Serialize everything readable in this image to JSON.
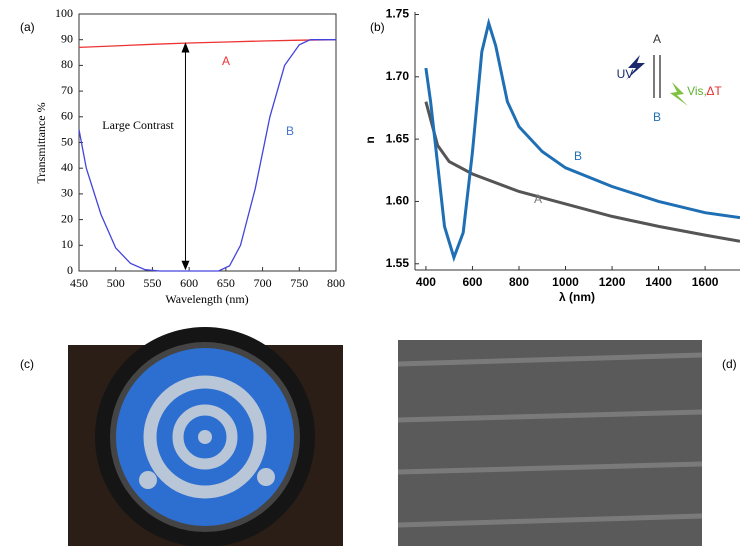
{
  "chart_data": [
    {
      "type": "line",
      "label": "(a)",
      "x_label": "Wavelength (nm)",
      "y_label": "Transmittance %",
      "xlim": [
        450,
        800
      ],
      "xticks": [
        450,
        500,
        550,
        600,
        650,
        700,
        750,
        800
      ],
      "ylim": [
        0,
        100
      ],
      "yticks": [
        0,
        10,
        20,
        30,
        40,
        50,
        60,
        70,
        80,
        90,
        100
      ],
      "series": [
        {
          "name": "A",
          "color": "#ee3333",
          "x": [
            450,
            500,
            550,
            600,
            650,
            700,
            750,
            800
          ],
          "values": [
            87,
            87.6,
            88.2,
            88.7,
            89.1,
            89.5,
            89.8,
            90
          ]
        },
        {
          "name": "B",
          "color": "#4444dd",
          "x": [
            450,
            460,
            480,
            500,
            520,
            540,
            560,
            600,
            640,
            655,
            670,
            690,
            710,
            730,
            750,
            765,
            780,
            800
          ],
          "values": [
            55,
            40,
            22,
            9,
            3,
            0.5,
            0,
            0,
            0,
            2,
            10,
            32,
            60,
            80,
            88,
            90,
            90,
            90
          ]
        }
      ],
      "annotations": [
        "A",
        "B",
        "Large Contrast"
      ]
    },
    {
      "type": "line",
      "label": "(b)",
      "x_label": "λ (nm)",
      "y_label": "n",
      "xlim": [
        353,
        1750
      ],
      "xticks": [
        400,
        600,
        800,
        1000,
        1200,
        1400,
        1600
      ],
      "ylim": [
        1.545,
        1.752
      ],
      "yticks": [
        1.55,
        {
          "value": 1.6,
          "label": "1.60"
        },
        1.65,
        {
          "value": 1.7,
          "label": "1.70"
        },
        1.75
      ],
      "series": [
        {
          "name": "A",
          "color": "#555555",
          "x": [
            400,
            450,
            500,
            600,
            800,
            1000,
            1200,
            1400,
            1600,
            1750
          ],
          "values": [
            1.68,
            1.645,
            1.632,
            1.622,
            1.608,
            1.598,
            1.588,
            1.58,
            1.573,
            1.568
          ]
        },
        {
          "name": "B",
          "color": "#1f6fb5",
          "x": [
            400,
            420,
            450,
            480,
            520,
            560,
            600,
            640,
            670,
            700,
            750,
            800,
            900,
            1000,
            1200,
            1400,
            1600,
            1750
          ],
          "values": [
            1.707,
            1.68,
            1.63,
            1.58,
            1.555,
            1.575,
            1.64,
            1.72,
            1.743,
            1.725,
            1.68,
            1.66,
            1.64,
            1.627,
            1.612,
            1.6,
            1.591,
            1.587
          ]
        }
      ],
      "annotations": [
        "A",
        "B",
        "A",
        "B",
        "UV",
        "Vis,",
        "ΔT"
      ]
    }
  ],
  "photos": [
    "(c)",
    "(d)"
  ]
}
